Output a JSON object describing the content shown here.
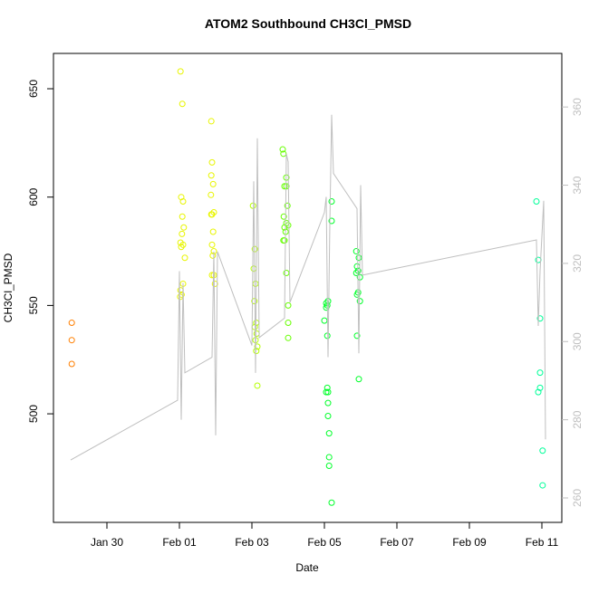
{
  "chart_data": {
    "type": "scatter",
    "title": "ATOM2 Southbound CH3Cl_PMSD",
    "x_label": "Date",
    "y_label": "CH3Cl_PMSD",
    "xlim": [
      28.525,
      42.55
    ],
    "xticks": [
      {
        "value": 30,
        "label": "Jan 30"
      },
      {
        "value": 32,
        "label": "Feb 01"
      },
      {
        "value": 34,
        "label": "Feb 03"
      },
      {
        "value": 36,
        "label": "Feb 05"
      },
      {
        "value": 38,
        "label": "Feb 07"
      },
      {
        "value": 40,
        "label": "Feb 09"
      },
      {
        "value": 42,
        "label": "Feb 11"
      }
    ],
    "ylim": [
      449.9,
      666.3
    ],
    "yticks": [
      500,
      550,
      600,
      650
    ],
    "y2lim": [
      253.75,
      373.7
    ],
    "y2ticks": [
      260,
      280,
      300,
      320,
      340,
      360
    ],
    "series": [
      {
        "color": "#ff7f00",
        "x": [
          29.03,
          29.03,
          29.03
        ],
        "values": [
          542,
          534,
          523
        ]
      },
      {
        "color": "#e8f500",
        "x": [
          32.03,
          32.08,
          32.05,
          32.1,
          32.08,
          32.12,
          32.07,
          32.03,
          32.1,
          32.05,
          32.15,
          32.1,
          32.03,
          32.06,
          32.02,
          32.88,
          32.9,
          32.88,
          32.93,
          32.87,
          32.95,
          32.9,
          32.88,
          32.93,
          32.9,
          32.95,
          32.92,
          32.9,
          32.95,
          32.98
        ],
        "values": [
          658,
          643,
          600,
          598,
          591,
          586,
          583,
          579,
          578,
          577,
          572,
          560,
          557,
          555,
          554,
          635,
          616,
          610,
          606,
          601,
          593,
          592,
          592,
          584,
          578,
          575,
          573,
          564,
          564,
          560
        ]
      },
      {
        "color": "#b6ff00",
        "x": [
          34.03,
          34.08,
          34.05,
          34.1,
          34.07,
          34.12,
          34.08,
          34.13,
          34.1,
          34.15,
          34.12,
          34.15
        ],
        "values": [
          596,
          576,
          567,
          560,
          552,
          542,
          540,
          537,
          534,
          531,
          529,
          513
        ]
      },
      {
        "color": "#66ff00",
        "x": [
          34.85,
          34.87,
          34.95,
          34.9,
          34.95,
          34.98,
          34.88,
          34.95,
          35.0,
          34.9,
          34.93,
          34.87,
          34.9,
          34.95,
          35.0,
          35.0,
          35.0
        ],
        "values": [
          622,
          620,
          609,
          605,
          605,
          596,
          591,
          588,
          587,
          586,
          584,
          580,
          580,
          565,
          550,
          542,
          535
        ]
      },
      {
        "color": "#00ff2a",
        "x": [
          36.2,
          36.2,
          36.1,
          36.05,
          36.08,
          36.05,
          36.0,
          36.08,
          36.08,
          36.05,
          36.1,
          36.1,
          36.1,
          36.13,
          36.13,
          36.13,
          36.2,
          36.88,
          36.95,
          36.9,
          36.93,
          36.88,
          36.98,
          36.93,
          36.9,
          36.98,
          36.9,
          36.95
        ],
        "values": [
          598,
          589,
          552,
          551,
          550,
          549,
          543,
          536,
          512,
          510,
          510,
          505,
          499,
          491,
          480,
          476,
          459,
          575,
          572,
          568,
          566,
          565,
          563,
          556,
          555,
          552,
          536,
          516
        ]
      },
      {
        "color": "#00ff99",
        "x": [
          41.85,
          41.9,
          41.95,
          41.95,
          41.95,
          41.9,
          42.02,
          42.02
        ],
        "values": [
          598,
          571,
          544,
          519,
          512,
          510,
          483,
          467
        ]
      },
      {
        "color": "#bfbfbf",
        "type": "line",
        "axis": "y2",
        "x": [
          29.0,
          31.95,
          32.0,
          32.05,
          32.1,
          32.15,
          32.9,
          32.95,
          33.0,
          33.05,
          34.0,
          34.05,
          34.1,
          34.15,
          34.2,
          34.9,
          34.95,
          35.0,
          35.05,
          36.0,
          36.05,
          36.1,
          36.15,
          36.2,
          36.25,
          36.9,
          36.95,
          37.0,
          37.05,
          41.85,
          41.9,
          41.95,
          42.05,
          42.1
        ],
        "values": [
          269.7,
          285,
          318,
          280,
          315,
          292,
          296,
          323,
          276,
          323,
          299,
          341,
          292,
          352,
          301,
          306,
          348,
          346,
          310,
          333,
          337,
          296,
          330,
          358,
          343,
          334,
          297,
          340,
          317,
          326,
          304,
          318,
          336,
          275
        ]
      }
    ]
  }
}
